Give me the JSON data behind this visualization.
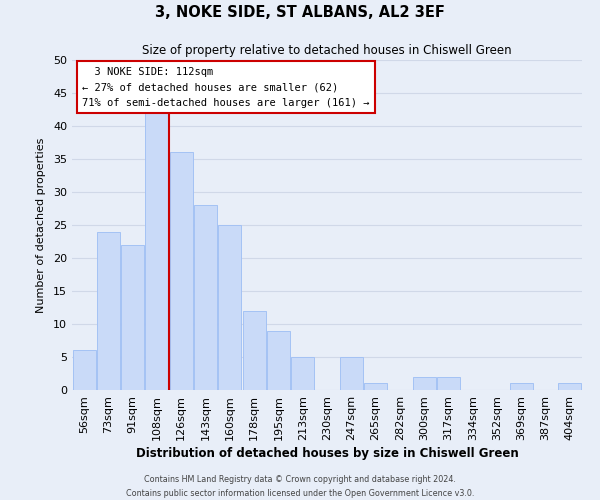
{
  "title": "3, NOKE SIDE, ST ALBANS, AL2 3EF",
  "subtitle": "Size of property relative to detached houses in Chiswell Green",
  "xlabel": "Distribution of detached houses by size in Chiswell Green",
  "ylabel": "Number of detached properties",
  "bar_labels": [
    "56sqm",
    "73sqm",
    "91sqm",
    "108sqm",
    "126sqm",
    "143sqm",
    "160sqm",
    "178sqm",
    "195sqm",
    "213sqm",
    "230sqm",
    "247sqm",
    "265sqm",
    "282sqm",
    "300sqm",
    "317sqm",
    "334sqm",
    "352sqm",
    "369sqm",
    "387sqm",
    "404sqm"
  ],
  "bar_values": [
    6,
    24,
    22,
    42,
    36,
    28,
    25,
    12,
    9,
    5,
    0,
    5,
    1,
    0,
    2,
    2,
    0,
    0,
    1,
    0,
    1
  ],
  "bar_color": "#c9daf8",
  "bar_edge_color": "#a4c2f4",
  "vline_x_index": 3.5,
  "vline_color": "#cc0000",
  "ylim": [
    0,
    50
  ],
  "yticks": [
    0,
    5,
    10,
    15,
    20,
    25,
    30,
    35,
    40,
    45,
    50
  ],
  "annotation_title": "3 NOKE SIDE: 112sqm",
  "annotation_line1": "← 27% of detached houses are smaller (62)",
  "annotation_line2": "71% of semi-detached houses are larger (161) →",
  "annotation_box_color": "#ffffff",
  "annotation_box_edge": "#cc0000",
  "grid_color": "#d0d8e8",
  "background_color": "#e8eef8",
  "footer1": "Contains HM Land Registry data © Crown copyright and database right 2024.",
  "footer2": "Contains public sector information licensed under the Open Government Licence v3.0."
}
